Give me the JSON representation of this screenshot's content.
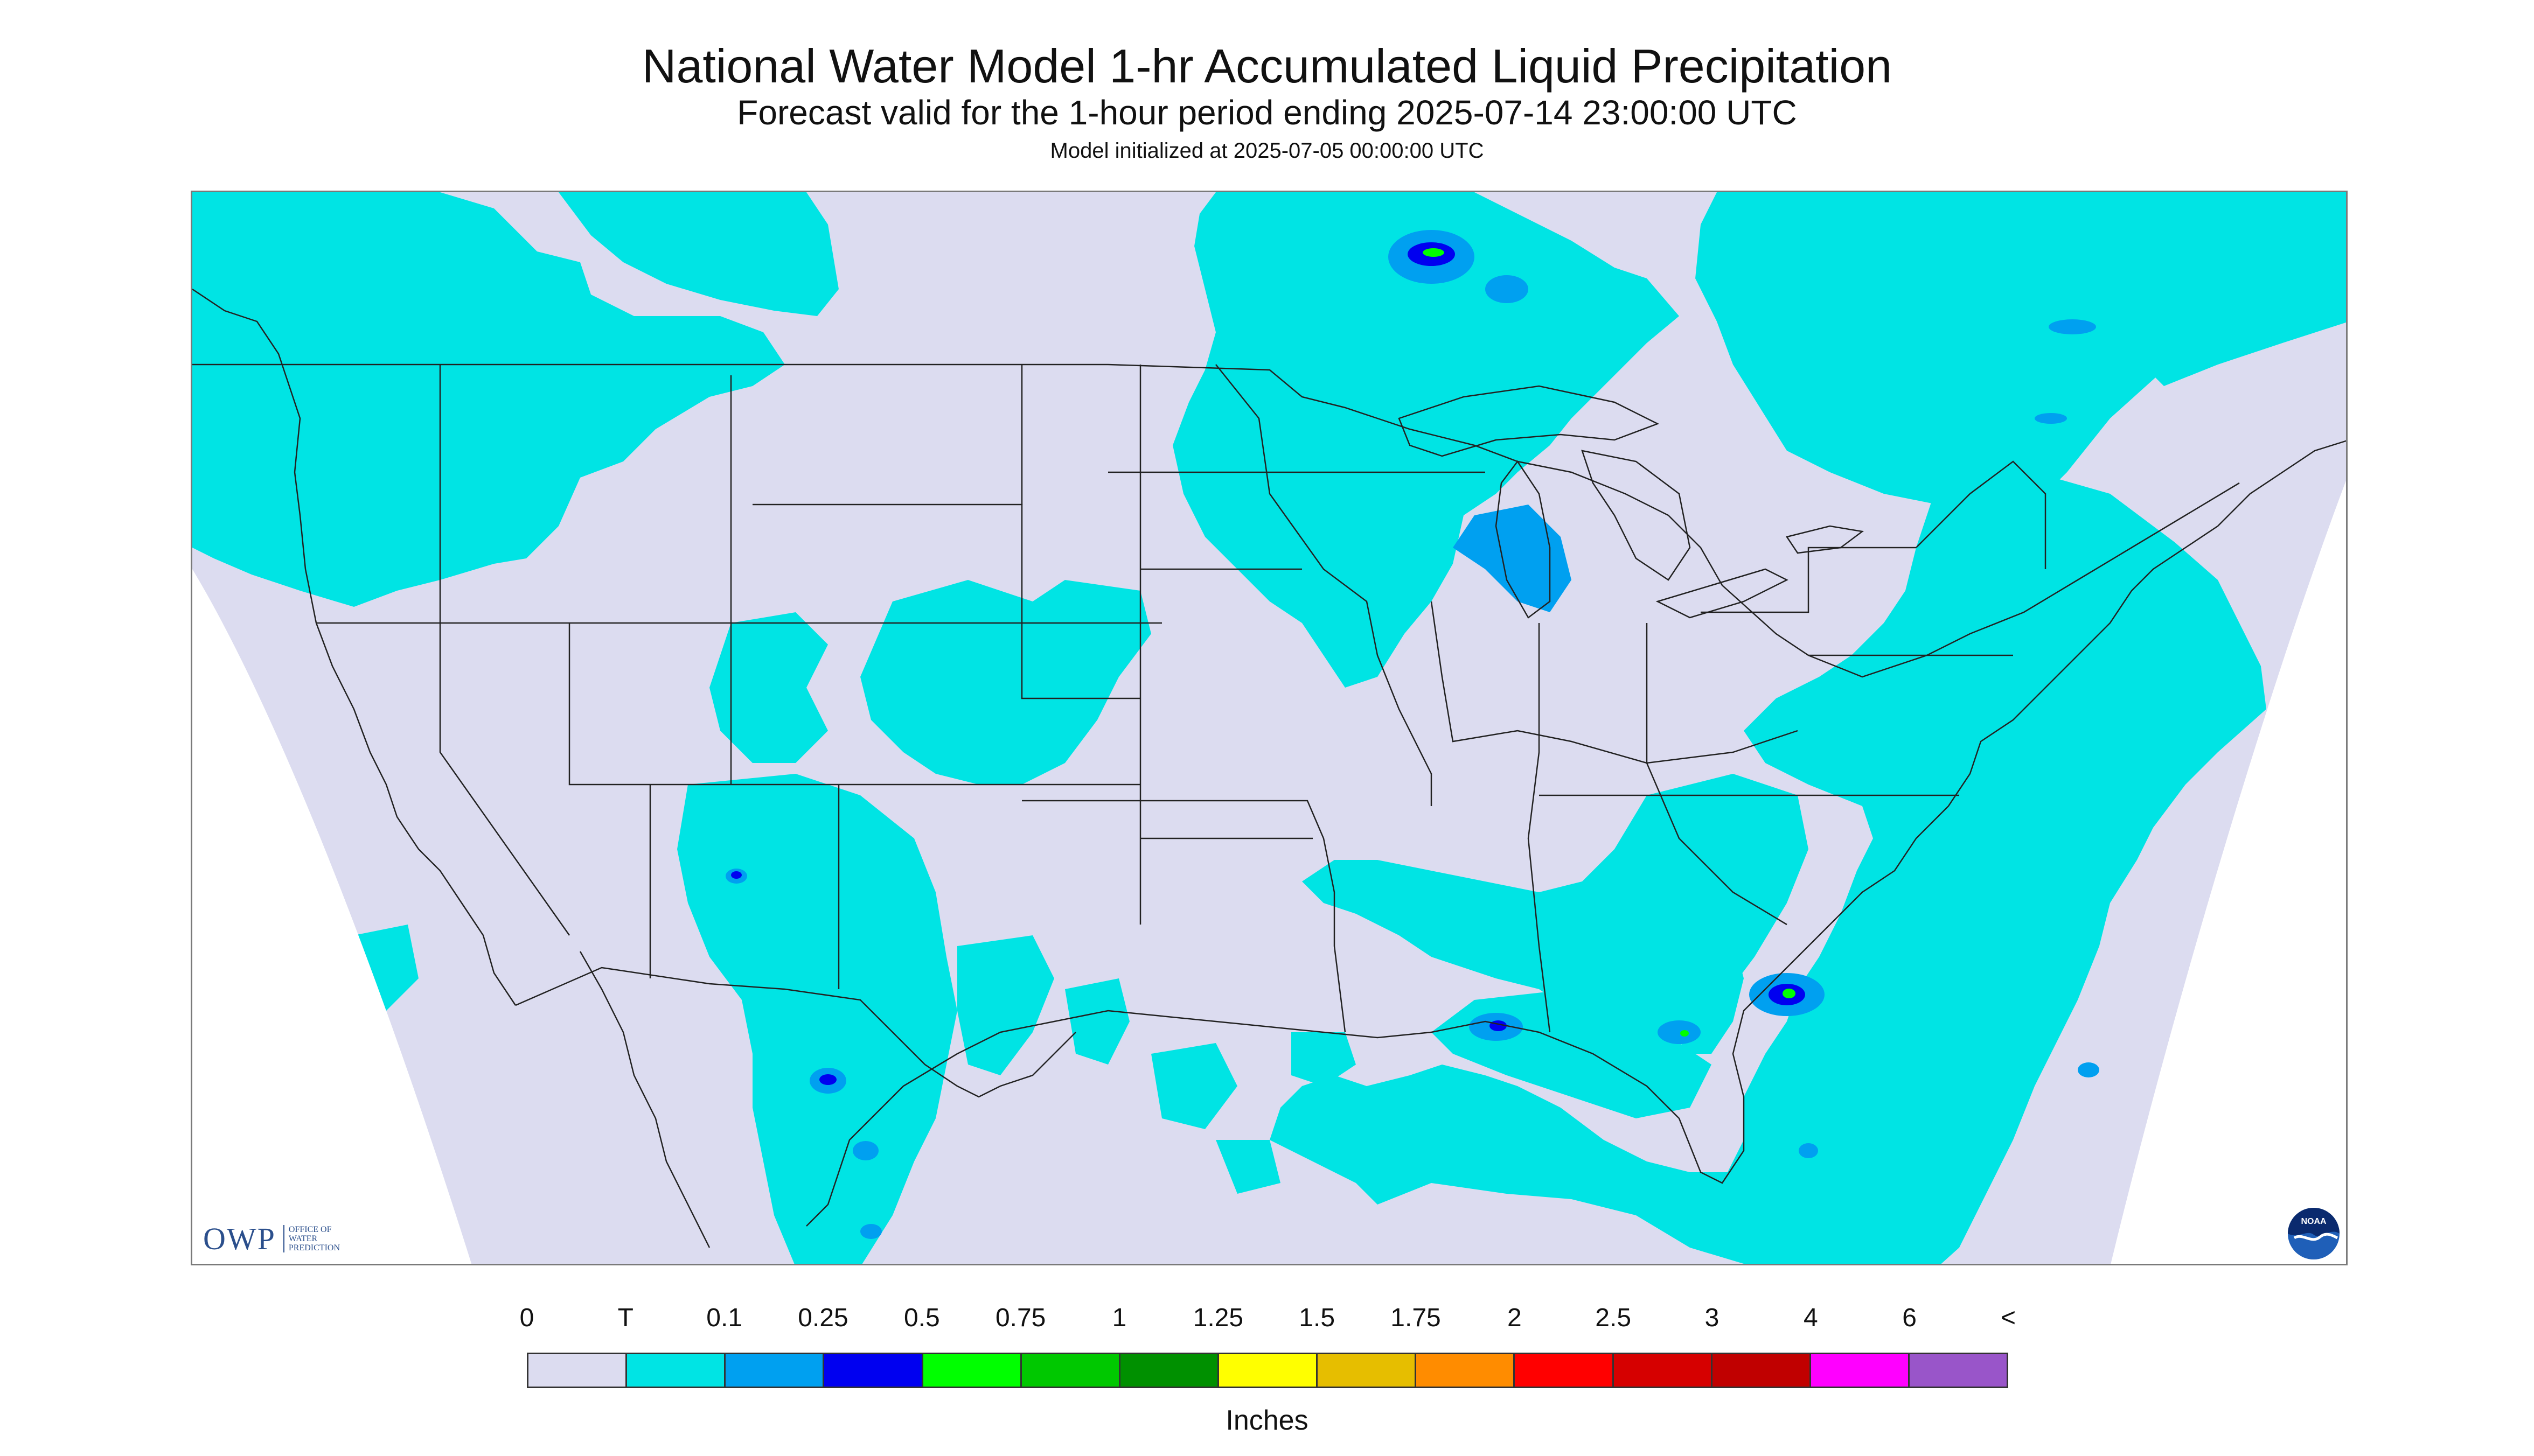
{
  "header": {
    "title": "National Water Model 1-hr Accumulated Liquid Precipitation",
    "subtitle": "Forecast valid for the 1-hour period ending 2025-07-14 23:00:00 UTC",
    "init_line": "Model initialized at 2025-07-05 00:00:00 UTC"
  },
  "logos": {
    "owp_letters": "OWP",
    "owp_text": [
      "OFFICE OF",
      "WATER",
      "PREDICTION"
    ],
    "noaa_text": "NOAA"
  },
  "legend": {
    "units": "Inches",
    "tick_labels": [
      "0",
      "T",
      "0.1",
      "0.25",
      "0.5",
      "0.75",
      "1",
      "1.25",
      "1.5",
      "1.75",
      "2",
      "2.5",
      "3",
      "4",
      "6",
      "<"
    ],
    "colors": [
      "#dcdcf0",
      "#00e4e4",
      "#00a0f0",
      "#0000f0",
      "#00ff00",
      "#00c800",
      "#009000",
      "#ffff00",
      "#e6be00",
      "#ff8c00",
      "#ff0000",
      "#d60000",
      "#c00000",
      "#ff00ff",
      "#9955c9"
    ]
  },
  "map": {
    "background_color": "#dcdcf0",
    "outside_color": "#ffffff",
    "border_color": "#222222"
  }
}
